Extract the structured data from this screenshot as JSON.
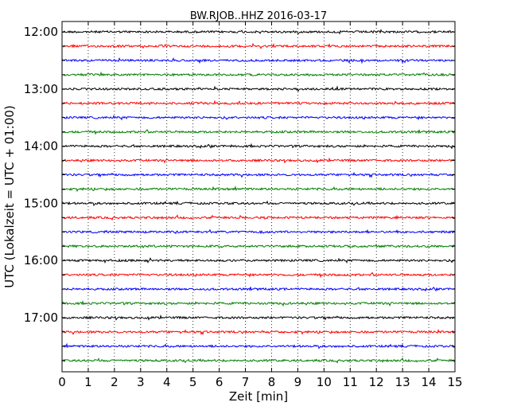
{
  "chart_data": {
    "type": "line",
    "title": "BW.RJOB..HHZ 2016-03-17",
    "xlabel": "Zeit  [min]",
    "ylabel": "UTC (Lokalzeit = UTC + 01:00)",
    "xlim": [
      0,
      15
    ],
    "x_ticks": [
      "0",
      "1",
      "2",
      "3",
      "4",
      "5",
      "6",
      "7",
      "8",
      "9",
      "10",
      "11",
      "12",
      "13",
      "14",
      "15"
    ],
    "y_tick_labels": [
      "12:00",
      "13:00",
      "14:00",
      "15:00",
      "16:00",
      "17:00"
    ],
    "grid": {
      "x": "dotted",
      "y": false
    },
    "trace_colors": [
      "#000000",
      "#ff0000",
      "#0000ff",
      "#007f00"
    ],
    "traces": [
      {
        "start": "12:00"
      },
      {
        "start": "12:15"
      },
      {
        "start": "12:30"
      },
      {
        "start": "12:45"
      },
      {
        "start": "13:00"
      },
      {
        "start": "13:15"
      },
      {
        "start": "13:30"
      },
      {
        "start": "13:45"
      },
      {
        "start": "14:00"
      },
      {
        "start": "14:15"
      },
      {
        "start": "14:30"
      },
      {
        "start": "14:45"
      },
      {
        "start": "15:00"
      },
      {
        "start": "15:15"
      },
      {
        "start": "15:30"
      },
      {
        "start": "15:45"
      },
      {
        "start": "16:00"
      },
      {
        "start": "16:15"
      },
      {
        "start": "16:30"
      },
      {
        "start": "16:45"
      },
      {
        "start": "17:00"
      },
      {
        "start": "17:15"
      },
      {
        "start": "17:30"
      },
      {
        "start": "17:45"
      }
    ]
  }
}
